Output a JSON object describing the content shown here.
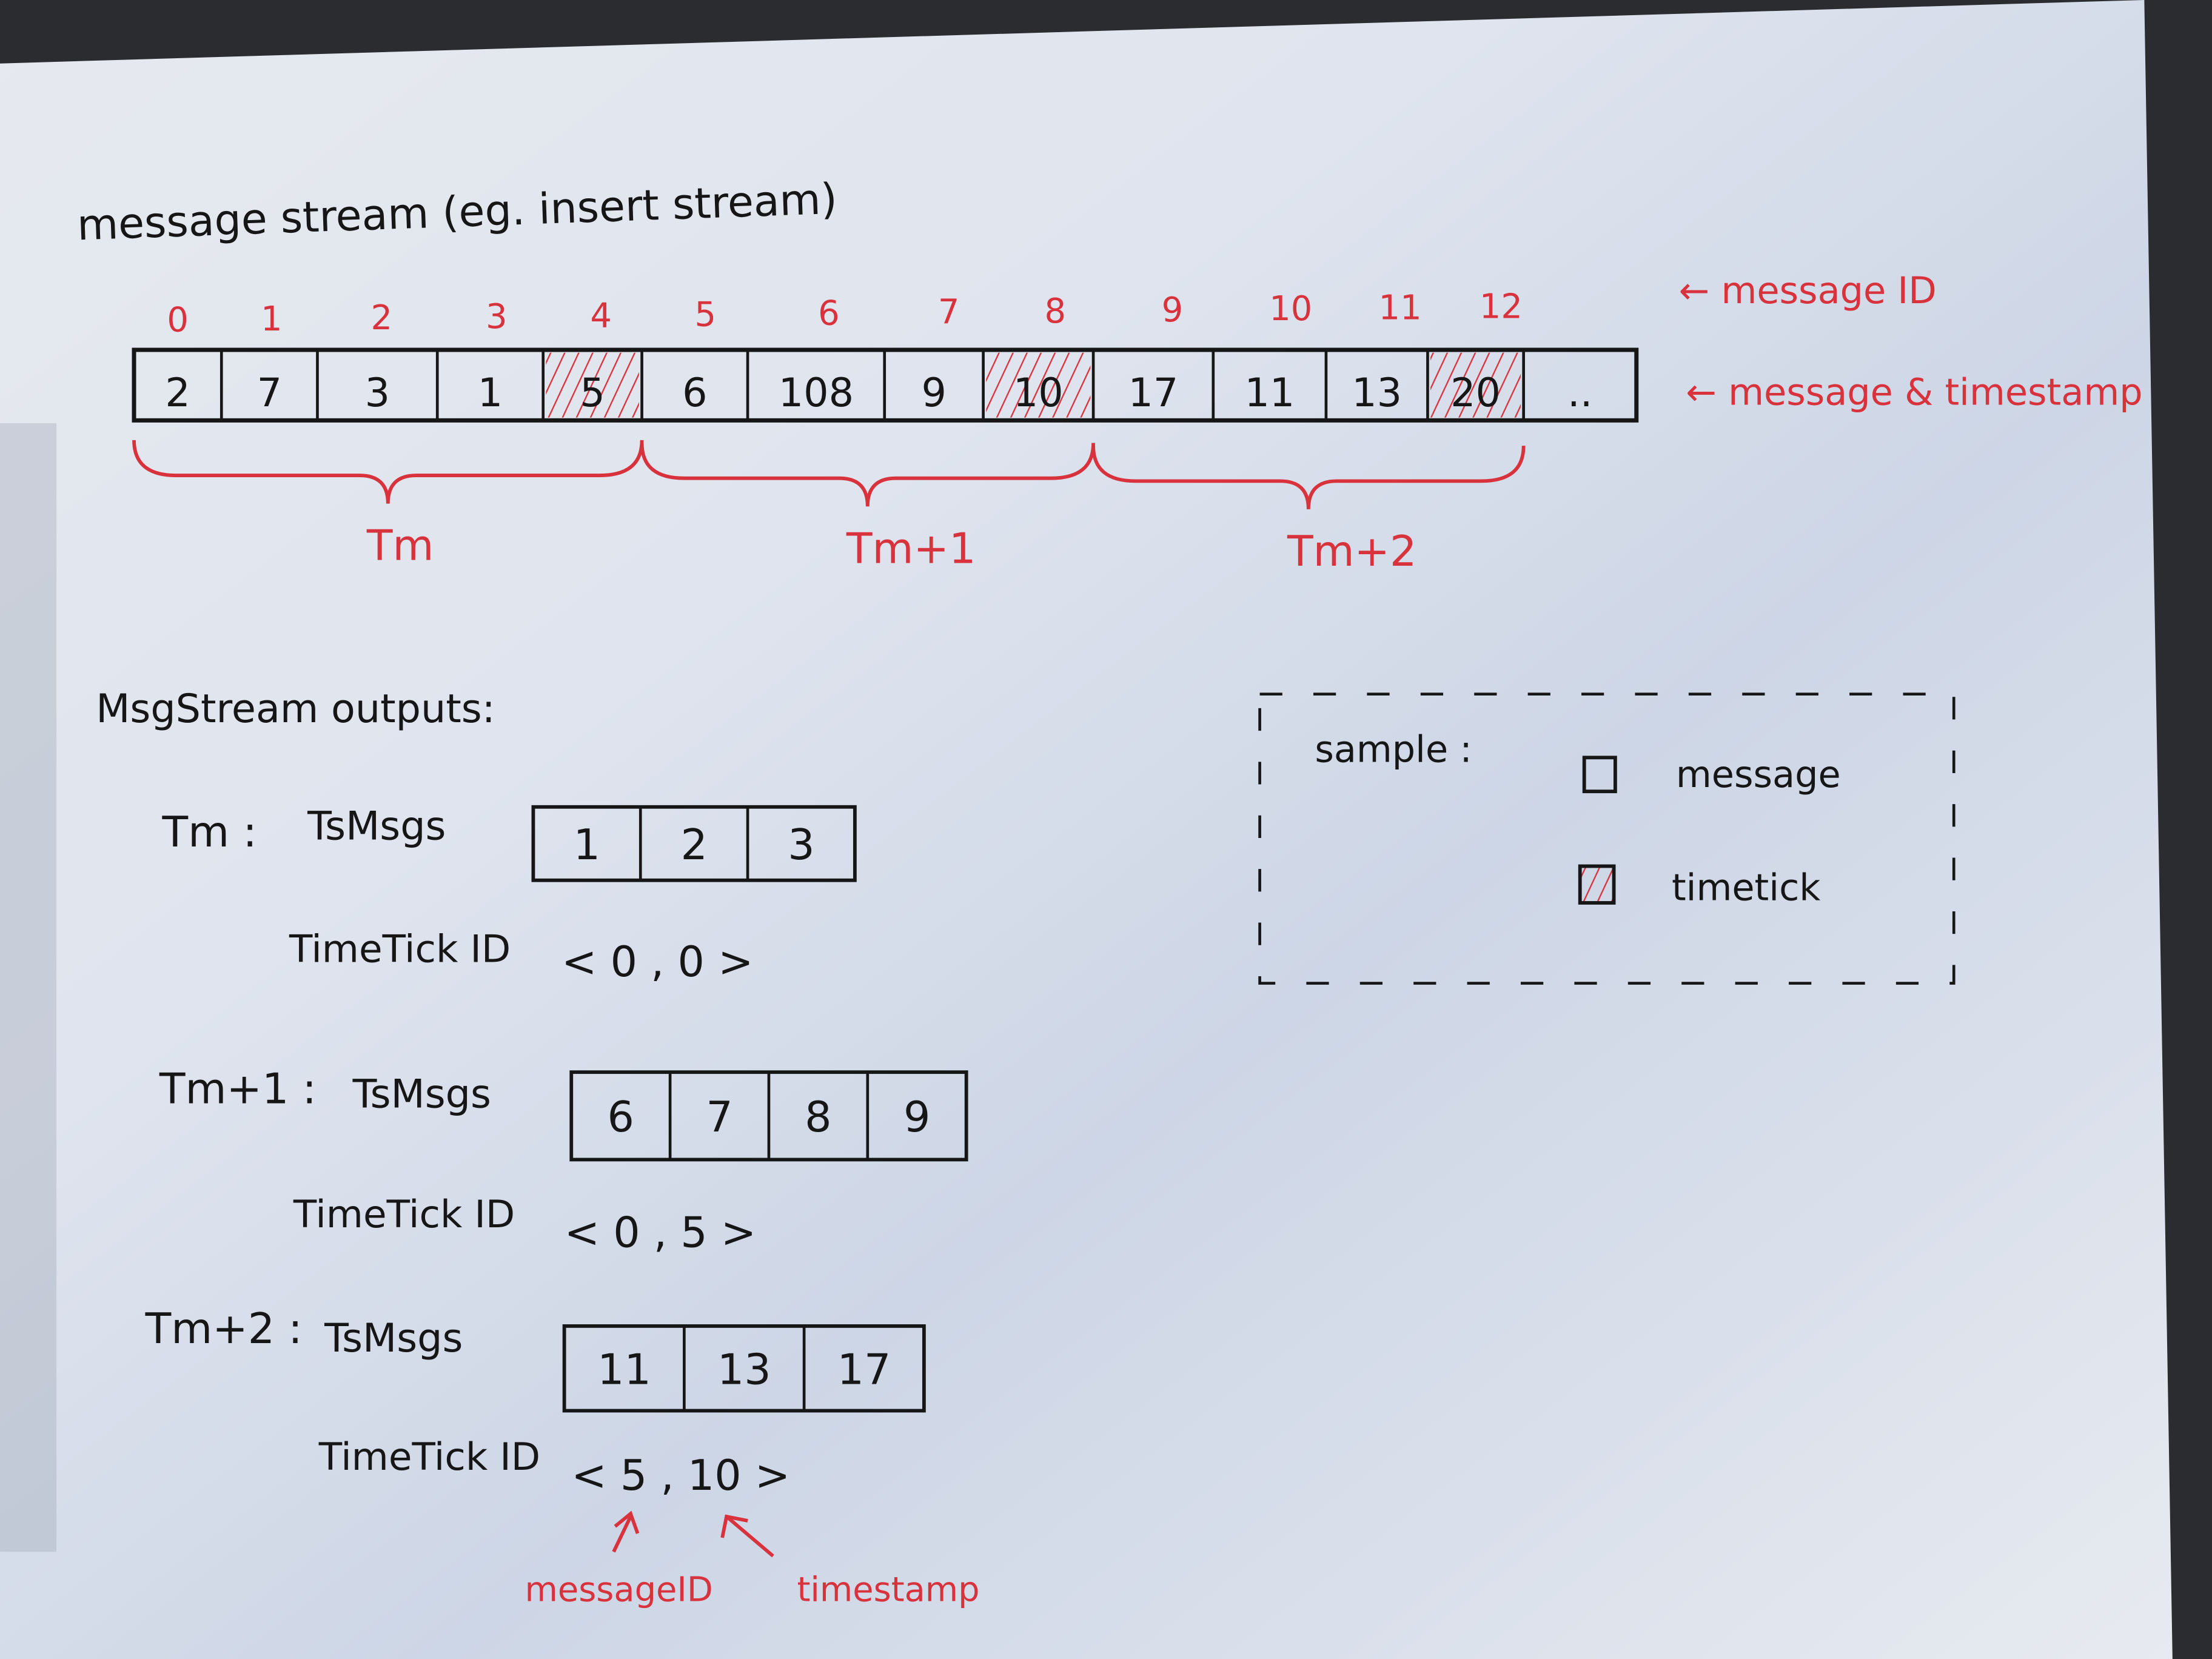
{
  "colors": {
    "ink": "#161616",
    "red_pen": "#d8323c",
    "paper": "#e9edf3"
  },
  "title": "message stream (eg. insert stream)",
  "stream": {
    "message_ids": [
      "0",
      "1",
      "2",
      "3",
      "4",
      "5",
      "6",
      "7",
      "8",
      "9",
      "10",
      "11",
      "12"
    ],
    "timestamps": [
      "2",
      "7",
      "3",
      "1",
      "5",
      "6",
      "108",
      "9",
      "10",
      "17",
      "11",
      "13",
      "20",
      ".."
    ],
    "timetick_cells": [
      4,
      8,
      12
    ],
    "label_message_id": "← message ID",
    "label_message_timestamp": "← message & timestamp",
    "intervals": [
      {
        "label": "Tm",
        "from_id": 0,
        "to_id": 4
      },
      {
        "label": "Tm+1",
        "from_id": 5,
        "to_id": 8
      },
      {
        "label": "Tm+2",
        "from_id": 9,
        "to_id": 12
      }
    ]
  },
  "outputs": {
    "heading": "MsgStream outputs:",
    "ts_msgs_label": "TsMsgs",
    "timetick_label": "TimeTick ID",
    "rows": [
      {
        "interval": "Tm :",
        "msgs": [
          "1",
          "2",
          "3"
        ],
        "timetick": "< 0 , 0 >"
      },
      {
        "interval": "Tm+1 :",
        "msgs": [
          "6",
          "7",
          "8",
          "9"
        ],
        "timetick": "< 0 , 5 >"
      },
      {
        "interval": "Tm+2 :",
        "msgs": [
          "11",
          "13",
          "17"
        ],
        "timetick": "< 5 , 10 >"
      }
    ],
    "annotation_message_id": "messageID",
    "annotation_timestamp": "timestamp"
  },
  "legend": {
    "title": "sample :",
    "items": [
      {
        "label": "message",
        "icon": "empty-square-icon"
      },
      {
        "label": "timetick",
        "icon": "hatched-square-icon"
      }
    ]
  }
}
